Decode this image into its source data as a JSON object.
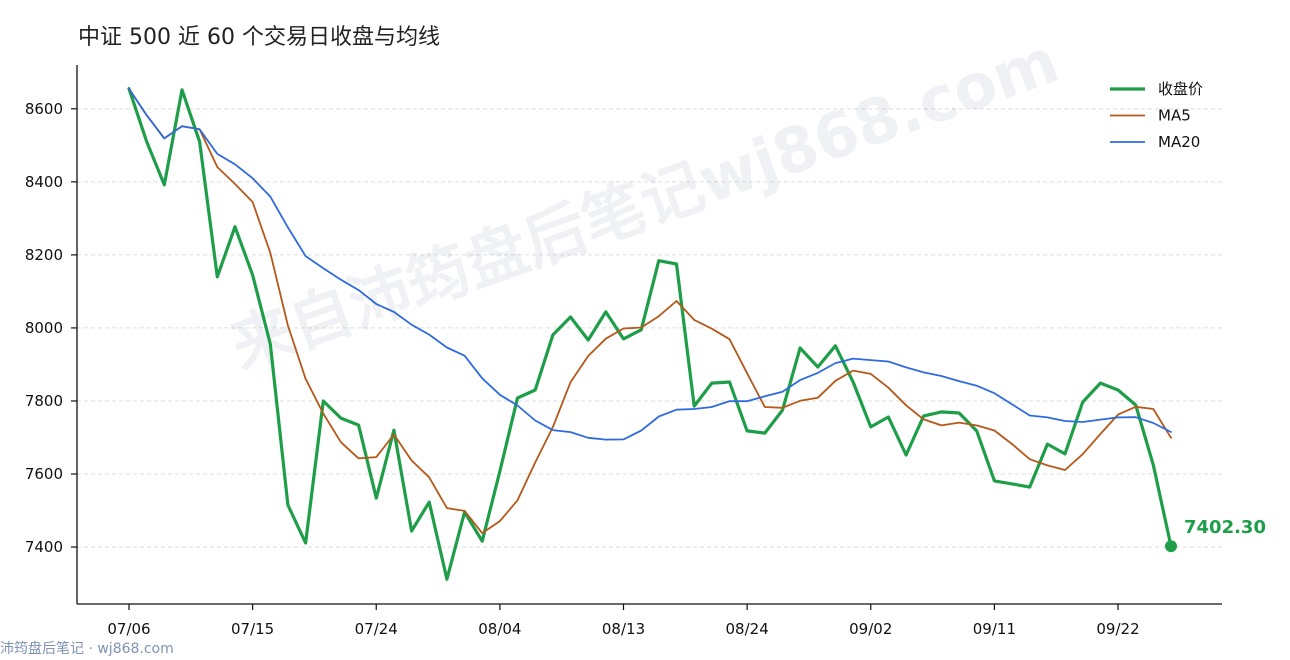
{
  "chart_data": {
    "type": "line",
    "title": "中证 500 近 60 个交易日收盘与均线",
    "x": [
      "07/06",
      "07/07",
      "07/08",
      "07/09",
      "07/10",
      "07/13",
      "07/14",
      "07/15",
      "07/16",
      "07/17",
      "07/20",
      "07/21",
      "07/22",
      "07/23",
      "07/24",
      "07/27",
      "07/28",
      "07/29",
      "07/30",
      "07/31",
      "08/03",
      "08/04",
      "08/05",
      "08/06",
      "08/07",
      "08/10",
      "08/11",
      "08/12",
      "08/13",
      "08/14",
      "08/17",
      "08/18",
      "08/19",
      "08/20",
      "08/21",
      "08/24",
      "08/25",
      "08/26",
      "08/27",
      "08/28",
      "08/31",
      "09/01",
      "09/02",
      "09/03",
      "09/04",
      "09/07",
      "09/08",
      "09/09",
      "09/10",
      "09/11",
      "09/14",
      "09/15",
      "09/16",
      "09/17",
      "09/18",
      "09/21",
      "09/22",
      "09/23",
      "09/24",
      "09/25"
    ],
    "xticks": [
      "07/06",
      "07/15",
      "07/24",
      "08/04",
      "08/13",
      "08/24",
      "09/02",
      "09/11",
      "09/22"
    ],
    "yticks": [
      7400,
      7600,
      7800,
      8000,
      8200,
      8400,
      8600
    ],
    "ylim": [
      7244,
      8720
    ],
    "grid": true,
    "legend": "top-right",
    "series": [
      {
        "name": "收盘价",
        "color": "#1f9e4a",
        "values": [
          8655,
          8510,
          8392,
          8652,
          8510,
          8140,
          8277,
          8145,
          7956,
          7515,
          7411,
          7800,
          7753,
          7734,
          7534,
          7720,
          7444,
          7523,
          7312,
          7496,
          7416,
          7608,
          7808,
          7830,
          7981,
          8030,
          7967,
          8044,
          7970,
          7995,
          8184,
          8175,
          7786,
          7849,
          7852,
          7718,
          7712,
          7775,
          7945,
          7893,
          7951,
          7852,
          7729,
          7756,
          7652,
          7759,
          7770,
          7767,
          7718,
          7581,
          7573,
          7564,
          7682,
          7655,
          7797,
          7849,
          7830,
          7789,
          7625,
          7402.3
        ]
      },
      {
        "name": "MA5",
        "color": "#b5581a",
        "values": [
          8655.0,
          8582.5,
          8519.0,
          8552.3,
          8543.8,
          8440.8,
          8394.2,
          8344.8,
          8205.6,
          8006.6,
          7860.8,
          7765.4,
          7687.0,
          7642.6,
          7646.4,
          7708.2,
          7637.0,
          7591.0,
          7506.6,
          7499.0,
          7438.2,
          7471.0,
          7528.0,
          7631.6,
          7728.6,
          7851.4,
          7923.2,
          7970.4,
          7998.4,
          8001.2,
          8032.0,
          8073.6,
          8022.0,
          7997.8,
          7969.2,
          7876.0,
          7783.4,
          7781.2,
          7800.4,
          7808.6,
          7855.2,
          7883.2,
          7874.0,
          7836.2,
          7788.0,
          7749.6,
          7733.2,
          7740.8,
          7733.2,
          7719.0,
          7681.8,
          7640.6,
          7623.6,
          7611.0,
          7654.2,
          7709.4,
          7762.6,
          7784.0,
          7778.0,
          7699.1
        ]
      },
      {
        "name": "MA20",
        "color": "#2f6bdd",
        "values": [
          8655.0,
          8582.5,
          8519.0,
          8552.3,
          8543.8,
          8476.5,
          8448.0,
          8410.1,
          8359.7,
          8275.2,
          8196.6,
          8163.6,
          8132.0,
          8103.6,
          8065.6,
          8044.0,
          8008.7,
          7981.7,
          7946.5,
          7924.0,
          7862.0,
          7816.9,
          7787.7,
          7746.6,
          7720.2,
          7714.7,
          7699.2,
          7694.1,
          7694.8,
          7718.8,
          7757.5,
          7776.2,
          7777.9,
          7783.6,
          7799.5,
          7799.4,
          7812.8,
          7825.4,
          7857.1,
          7876.9,
          7903.7,
          7915.9,
          7911.9,
          7908.2,
          7891.8,
          7878.2,
          7868.4,
          7854.5,
          7841.9,
          7821.2,
          7790.7,
          7760.1,
          7754.9,
          7745.2,
          7742.5,
          7749.0,
          7754.9,
          7755.6,
          7739.6,
          7715.1
        ]
      }
    ],
    "annotations": [
      {
        "text": "7402.30",
        "x": "09/25",
        "y": 7402.3,
        "color": "#1f9e4a"
      }
    ]
  },
  "watermark": {
    "text": "来自沛筠盘后笔记wj868.com"
  },
  "footer": {
    "text": "沛筠盘后笔记 · wj868.com"
  }
}
